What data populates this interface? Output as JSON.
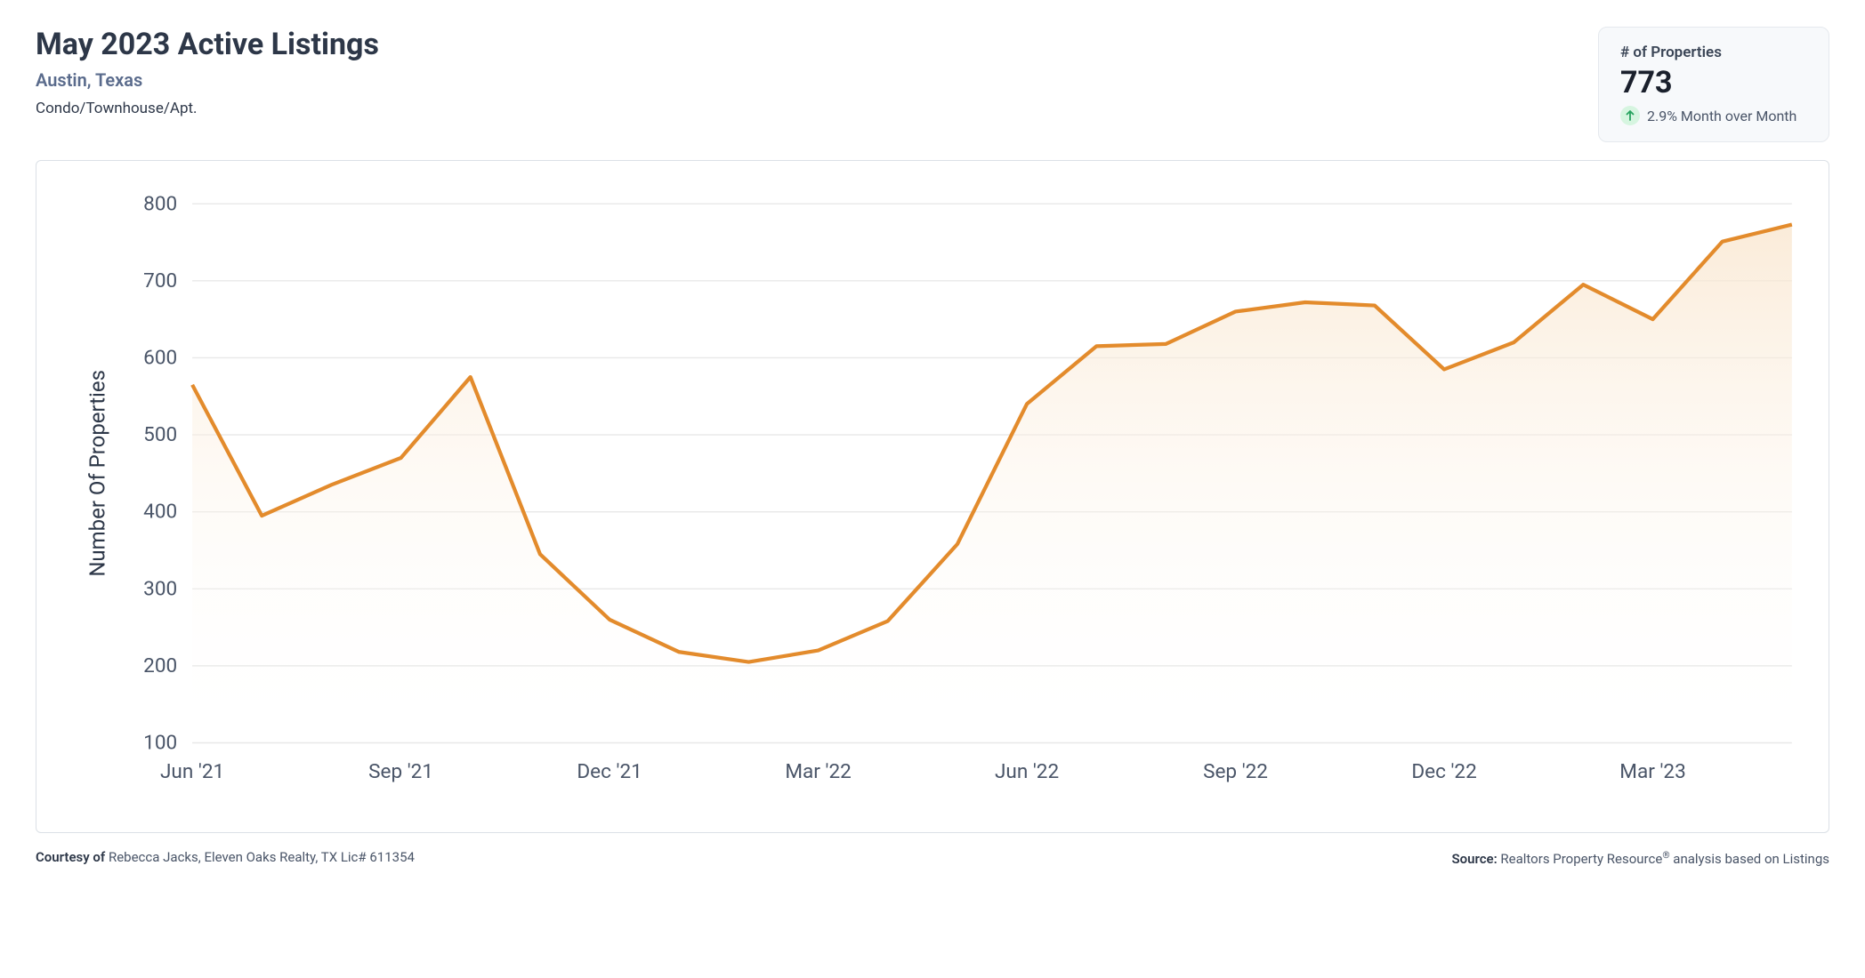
{
  "header": {
    "title": "May 2023 Active Listings",
    "subtitle": "Austin, Texas",
    "property_type": "Condo/Townhouse/Apt."
  },
  "stat": {
    "label": "# of Properties",
    "value": "773",
    "change_text": "2.9% Month over Month",
    "arrow_color": "#27a35f",
    "arrow_bg": "#d6f5e0"
  },
  "chart": {
    "type": "area",
    "line_color": "#e38b2c",
    "line_width": 3,
    "fill_top_color": "#f9e5cc",
    "fill_bottom_color": "#ffffff",
    "fill_opacity": 0.75,
    "background_color": "#ffffff",
    "grid_color": "#e8e8e8",
    "ylabel": "Number Of Properties",
    "ylim": [
      100,
      800
    ],
    "ytick_step": 100,
    "yticks": [
      100,
      200,
      300,
      400,
      500,
      600,
      700,
      800
    ],
    "xticks": [
      "Jun '21",
      "Sep '21",
      "Dec '21",
      "Mar '22",
      "Jun '22",
      "Sep '22",
      "Dec '22",
      "Mar '23"
    ],
    "xtick_indices": [
      0,
      3,
      6,
      9,
      12,
      15,
      18,
      21
    ],
    "values": [
      565,
      395,
      435,
      470,
      575,
      345,
      260,
      218,
      205,
      220,
      258,
      358,
      540,
      615,
      618,
      660,
      672,
      668,
      585,
      620,
      695,
      650,
      751,
      773
    ],
    "axis_fontsize": 16,
    "label_fontsize": 17,
    "text_color": "#4a5568"
  },
  "footer": {
    "courtesy_label": "Courtesy of ",
    "courtesy_text": "Rebecca Jacks, Eleven Oaks Realty, TX Lic# 611354",
    "source_label": "Source: ",
    "source_text_pre": "Realtors Property Resource",
    "source_text_post": " analysis based on Listings"
  }
}
